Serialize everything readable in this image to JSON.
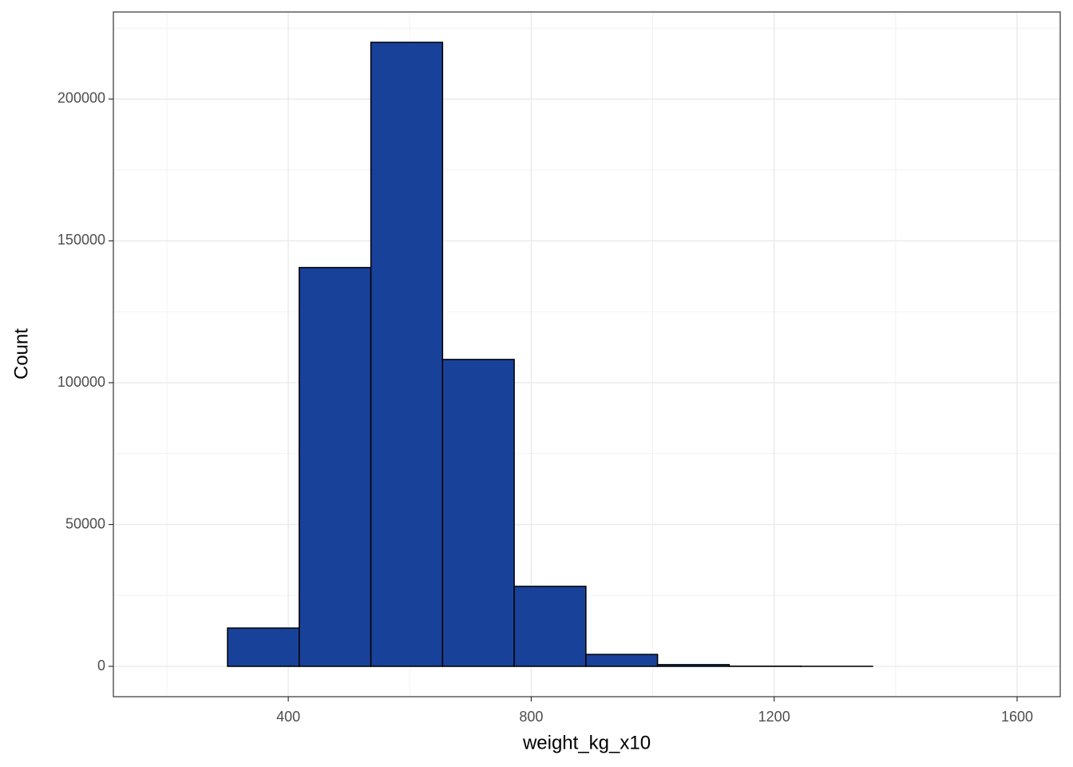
{
  "chart_data": {
    "type": "histogram",
    "x_label": "weight_kg_x10",
    "y_label": "Count",
    "bins": [
      182,
      300,
      418,
      536,
      654,
      772,
      890,
      1008,
      1126,
      1244,
      1362,
      1480,
      1598
    ],
    "counts": [
      0,
      13500,
      140600,
      220000,
      108200,
      28200,
      4200,
      600,
      50,
      10,
      0,
      0
    ],
    "color": "#18419a",
    "edge_color": "#000000",
    "xlim": [
      112,
      1671
    ],
    "xticks": [
      400,
      800,
      1200,
      1600
    ],
    "x_minor_ticks": [
      200,
      600,
      1000,
      1400
    ],
    "ylim": [
      -10700,
      230700
    ],
    "yticks": [
      0,
      50000,
      100000,
      150000,
      200000
    ],
    "y_minor_ticks": [
      25000,
      75000,
      125000,
      175000,
      225000
    ],
    "grid": true
  }
}
